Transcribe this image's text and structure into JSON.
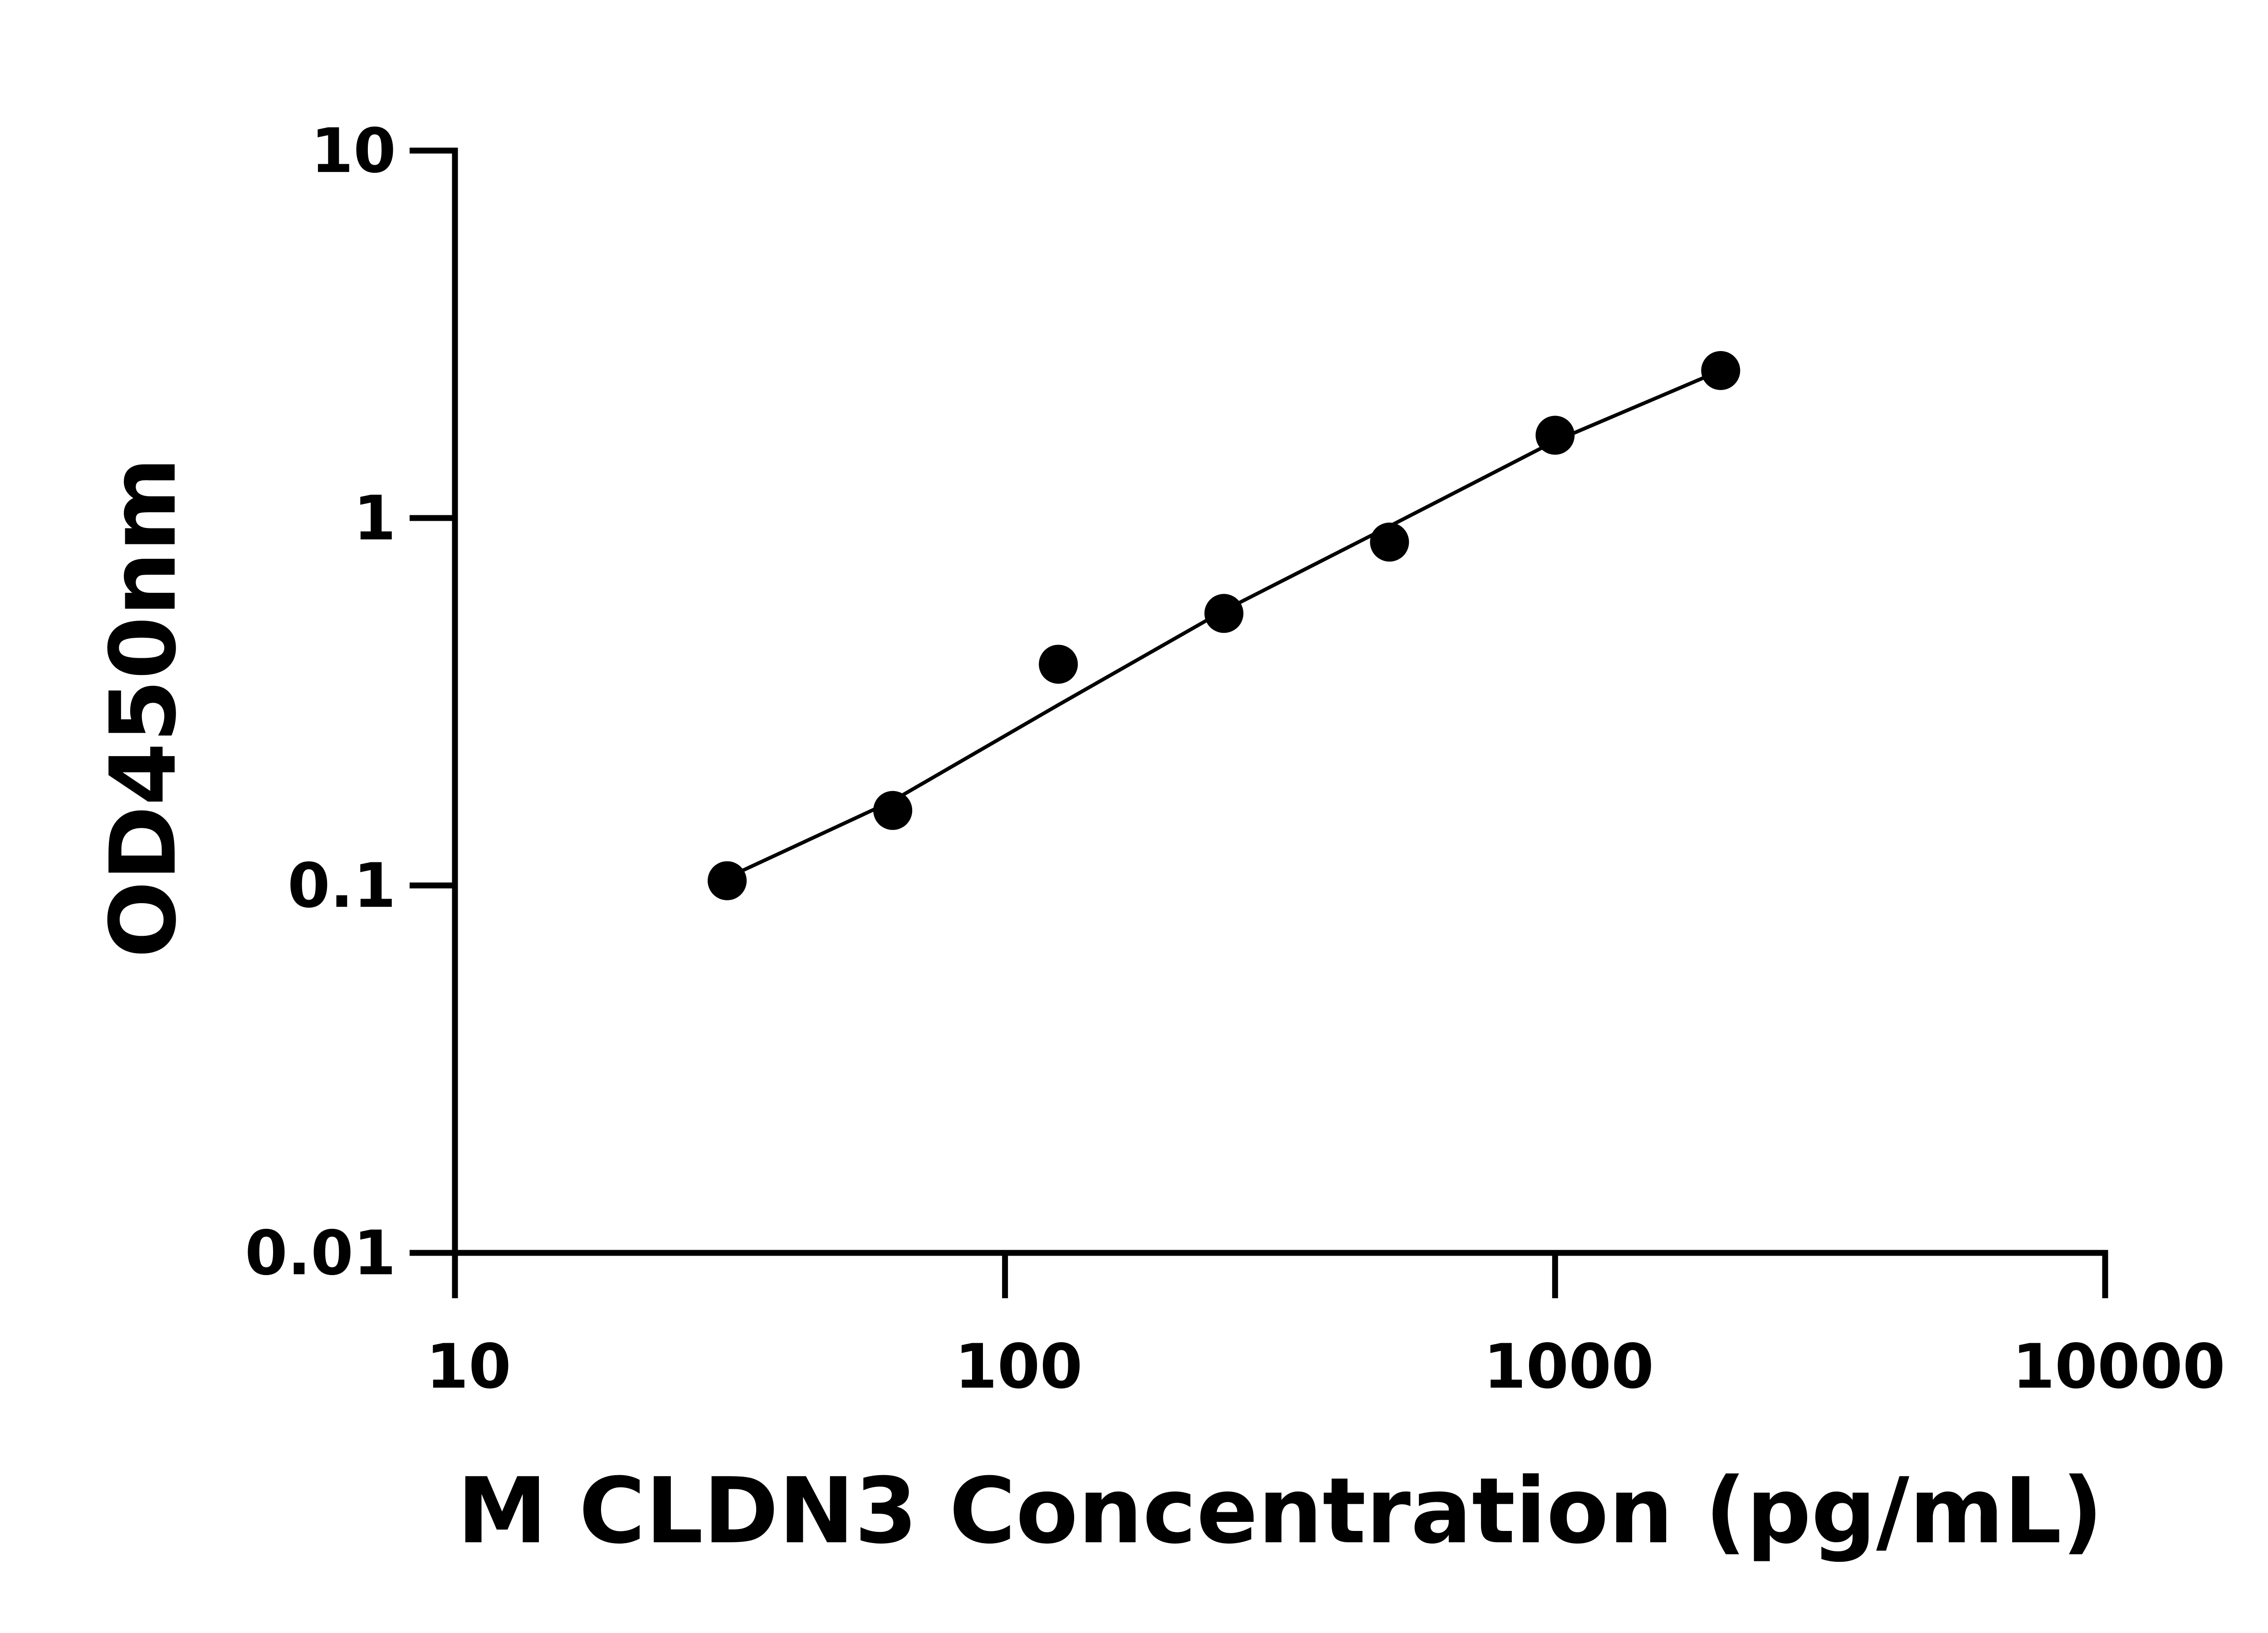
{
  "chart_data": {
    "type": "scatter",
    "x_label": "M CLDN3 Concentration (pg/mL)",
    "y_label": "OD450nm",
    "x": [
      31.25,
      62.5,
      125,
      250,
      500,
      1000,
      2000
    ],
    "values": [
      0.103,
      0.16,
      0.4,
      0.55,
      0.86,
      1.68,
      2.52
    ],
    "fit_values": [
      0.105,
      0.17,
      0.31,
      0.56,
      0.95,
      1.62,
      2.52
    ],
    "color": "#000000",
    "xscale": "log",
    "yscale": "log",
    "xlim": [
      10,
      10000
    ],
    "ylim": [
      0.01,
      10
    ],
    "xticks": [
      10,
      100,
      1000,
      10000
    ],
    "yticks": [
      0.01,
      0.1,
      1,
      10
    ],
    "grid": false
  }
}
